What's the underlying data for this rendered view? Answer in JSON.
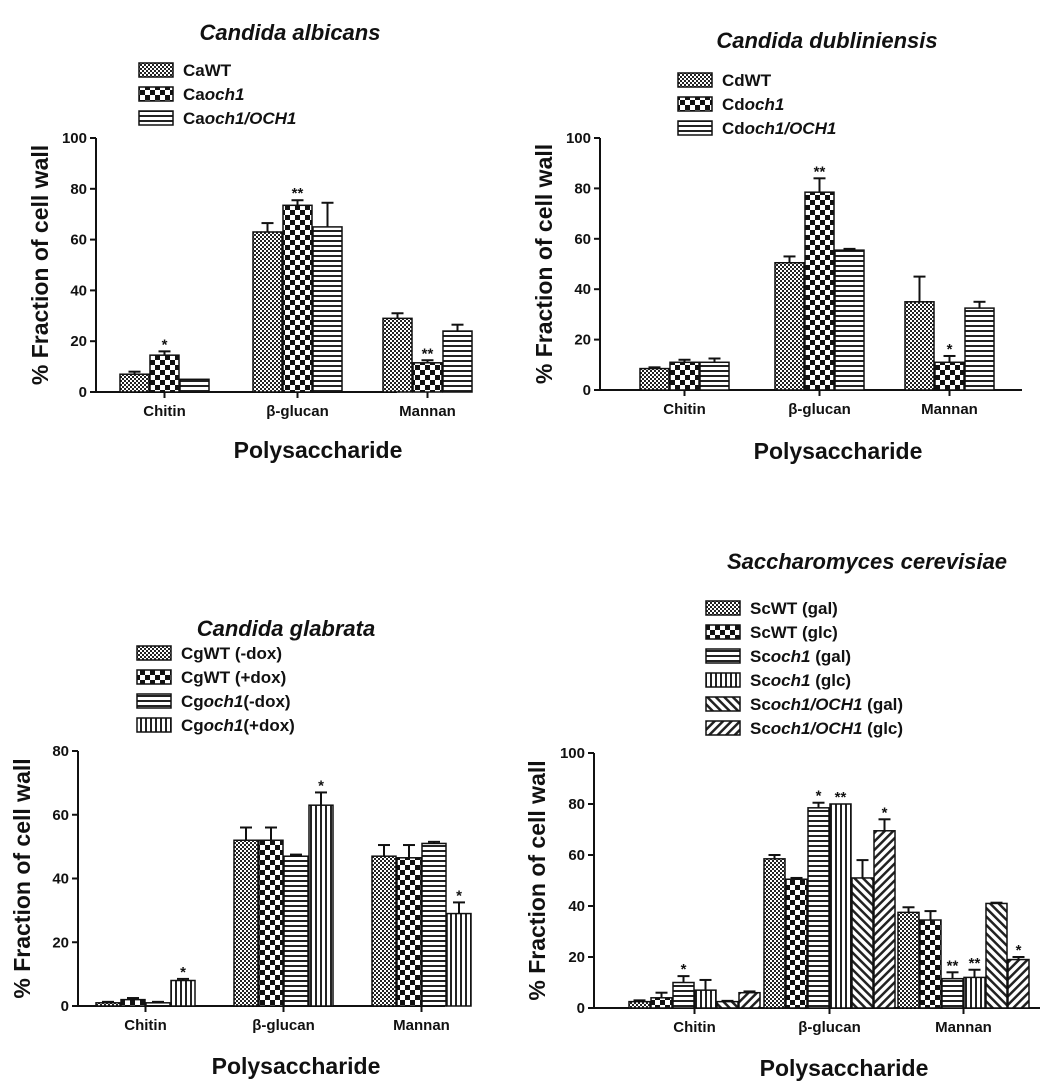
{
  "chart_data": [
    {
      "type": "bar",
      "title": "Candida albicans",
      "xlabel": "Polysaccharide",
      "ylabel": "% Fraction of cell wall",
      "ylim": [
        0,
        100
      ],
      "yticks": [
        0,
        20,
        40,
        60,
        80,
        100
      ],
      "categories": [
        "Chitin",
        "β-glucan",
        "Mannan"
      ],
      "legend_placement": "top-left",
      "series": [
        {
          "name": "CaWT",
          "name_parts": [
            [
              "Ca",
              false
            ],
            [
              "WT",
              false
            ]
          ],
          "pattern": "checker-small",
          "values": [
            7,
            63,
            29
          ],
          "errors": [
            1,
            3.5,
            2
          ],
          "stars": [
            "",
            "",
            ""
          ]
        },
        {
          "name": "Caoch1",
          "name_parts": [
            [
              "Ca",
              false
            ],
            [
              "och1",
              true
            ]
          ],
          "pattern": "checker-large",
          "values": [
            14.5,
            73.5,
            11.5
          ],
          "errors": [
            1.5,
            2,
            1
          ],
          "stars": [
            "*",
            "**",
            "**"
          ]
        },
        {
          "name": "Caoch1/OCH1",
          "name_parts": [
            [
              "Ca",
              false
            ],
            [
              "och1/OCH1",
              true
            ]
          ],
          "pattern": "horizontal",
          "values": [
            5,
            65,
            24
          ],
          "errors": [
            0,
            9.5,
            2.5
          ],
          "stars": [
            "",
            "",
            ""
          ]
        }
      ]
    },
    {
      "type": "bar",
      "title": "Candida dubliniensis",
      "xlabel": "Polysaccharide",
      "ylabel": "% Fraction of cell wall",
      "ylim": [
        0,
        100
      ],
      "yticks": [
        0,
        20,
        40,
        60,
        80,
        100
      ],
      "categories": [
        "Chitin",
        "β-glucan",
        "Mannan"
      ],
      "legend_placement": "top-right",
      "series": [
        {
          "name": "CdWT",
          "name_parts": [
            [
              "Cd",
              false
            ],
            [
              "WT",
              false
            ]
          ],
          "pattern": "checker-small",
          "values": [
            8.5,
            50.5,
            35
          ],
          "errors": [
            0.5,
            2.5,
            10
          ],
          "stars": [
            "",
            "",
            ""
          ]
        },
        {
          "name": "Cdoch1",
          "name_parts": [
            [
              "Cd",
              false
            ],
            [
              "och1",
              true
            ]
          ],
          "pattern": "checker-large",
          "values": [
            11,
            78.5,
            11
          ],
          "errors": [
            1,
            5.5,
            2.5
          ],
          "stars": [
            "",
            "**",
            "*"
          ]
        },
        {
          "name": "Cdoch1/OCH1",
          "name_parts": [
            [
              "Cd",
              false
            ],
            [
              "och1/OCH1",
              true
            ]
          ],
          "pattern": "horizontal",
          "values": [
            11,
            55.5,
            32.5
          ],
          "errors": [
            1.5,
            0.5,
            2.5
          ],
          "stars": [
            "",
            "",
            ""
          ]
        }
      ]
    },
    {
      "type": "bar",
      "title": "Candida glabrata",
      "xlabel": "Polysaccharide",
      "ylabel": "% Fraction of cell wall",
      "ylim": [
        0,
        80
      ],
      "yticks": [
        0,
        20,
        40,
        60,
        80
      ],
      "categories": [
        "Chitin",
        "β-glucan",
        "Mannan"
      ],
      "legend_placement": "top-right",
      "series": [
        {
          "name": "CgWT (-dox)",
          "name_parts": [
            [
              "CgWT (-dox)",
              false
            ]
          ],
          "pattern": "checker-small",
          "values": [
            1,
            52,
            47
          ],
          "errors": [
            0.3,
            4,
            3.5
          ],
          "stars": [
            "",
            "",
            ""
          ]
        },
        {
          "name": "CgWT (+dox)",
          "name_parts": [
            [
              "CgWT (+dox)",
              false
            ]
          ],
          "pattern": "checker-large",
          "values": [
            2,
            52,
            46.5
          ],
          "errors": [
            0.5,
            4,
            4
          ],
          "stars": [
            "",
            "",
            ""
          ]
        },
        {
          "name": "Cgoch1(-dox)",
          "name_parts": [
            [
              "Cg",
              false
            ],
            [
              "och1",
              true
            ],
            [
              "(-dox)",
              false
            ]
          ],
          "pattern": "horizontal",
          "values": [
            1,
            47,
            51
          ],
          "errors": [
            0.3,
            0.5,
            0.5
          ],
          "stars": [
            "",
            "",
            ""
          ]
        },
        {
          "name": "Cgoch1(+dox)",
          "name_parts": [
            [
              "Cg",
              false
            ],
            [
              "och1",
              true
            ],
            [
              "(+dox)",
              false
            ]
          ],
          "pattern": "vertical",
          "values": [
            8,
            63,
            29
          ],
          "errors": [
            0.5,
            4,
            3.5
          ],
          "stars": [
            "*",
            "*",
            "*"
          ]
        }
      ]
    },
    {
      "type": "bar",
      "title": "Saccharomyces cerevisiae",
      "xlabel": "Polysaccharide",
      "ylabel": "% Fraction of cell wall",
      "ylim": [
        0,
        100
      ],
      "yticks": [
        0,
        20,
        40,
        60,
        80,
        100
      ],
      "categories": [
        "Chitin",
        "β-glucan",
        "Mannan"
      ],
      "legend_placement": "top-right",
      "series": [
        {
          "name": "ScWT (gal)",
          "name_parts": [
            [
              "ScWT (gal)",
              false
            ]
          ],
          "pattern": "checker-small",
          "values": [
            2.5,
            58.5,
            37.5
          ],
          "errors": [
            0.5,
            1.5,
            2
          ],
          "stars": [
            "",
            "",
            ""
          ]
        },
        {
          "name": "ScWT (glc)",
          "name_parts": [
            [
              "ScWT (glc)",
              false
            ]
          ],
          "pattern": "checker-large",
          "values": [
            4,
            50.5,
            34.5
          ],
          "errors": [
            2,
            0.5,
            3.5
          ],
          "stars": [
            "",
            "",
            ""
          ]
        },
        {
          "name": "Scoch1 (gal)",
          "name_parts": [
            [
              "Sc",
              false
            ],
            [
              "och1",
              true
            ],
            [
              " (gal)",
              false
            ]
          ],
          "pattern": "horizontal",
          "values": [
            10,
            78.5,
            11.5
          ],
          "errors": [
            2.5,
            2,
            2.5
          ],
          "stars": [
            "*",
            "*",
            "**"
          ]
        },
        {
          "name": "Scoch1 (glc)",
          "name_parts": [
            [
              "Sc",
              false
            ],
            [
              "och1",
              true
            ],
            [
              " (glc)",
              false
            ]
          ],
          "pattern": "vertical",
          "values": [
            7,
            80,
            12
          ],
          "errors": [
            4,
            0,
            3
          ],
          "stars": [
            "",
            "**",
            "**"
          ]
        },
        {
          "name": "Scoch1/OCH1 (gal)",
          "name_parts": [
            [
              "Sc",
              false
            ],
            [
              "och1/OCH1",
              true
            ],
            [
              " (gal)",
              false
            ]
          ],
          "pattern": "diag-fwd",
          "values": [
            2.5,
            51,
            41
          ],
          "errors": [
            0.3,
            7,
            0.3
          ],
          "stars": [
            "",
            "",
            ""
          ]
        },
        {
          "name": "Scoch1/OCH1 (glc)",
          "name_parts": [
            [
              "Sc",
              false
            ],
            [
              "och1/OCH1",
              true
            ],
            [
              " (glc)",
              false
            ]
          ],
          "pattern": "diag-back",
          "values": [
            6,
            69.5,
            19
          ],
          "errors": [
            0.5,
            4.5,
            1
          ],
          "stars": [
            "",
            "*",
            "*"
          ]
        }
      ]
    }
  ]
}
